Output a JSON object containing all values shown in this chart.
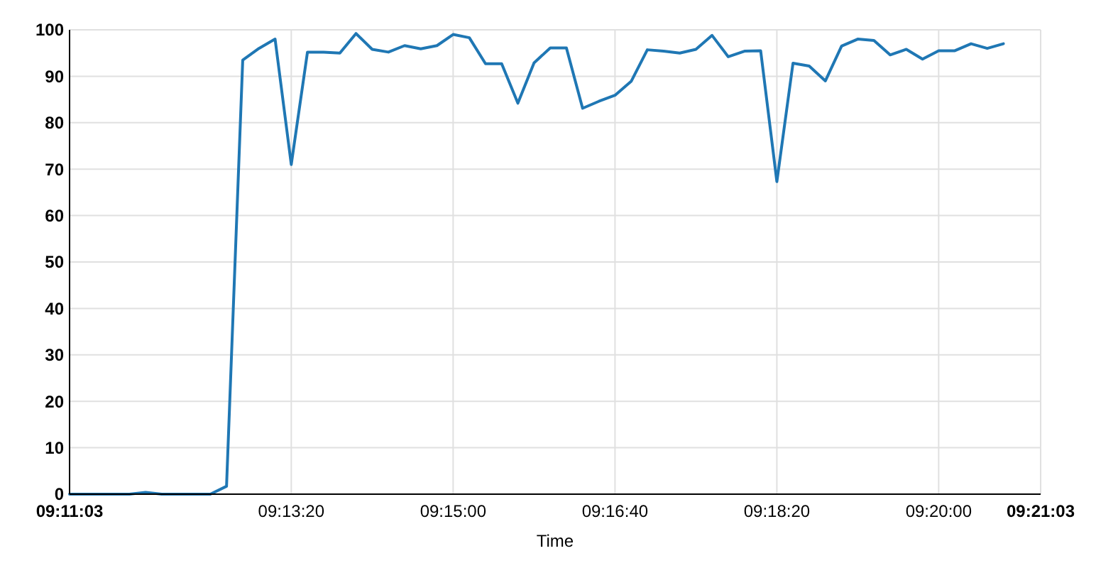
{
  "chart_data": {
    "type": "line",
    "xlabel": "Time",
    "x": [
      9.18417,
      9.18611,
      9.18889,
      9.19167,
      9.19444,
      9.19722,
      9.2,
      9.20278,
      9.20556,
      9.20833,
      9.21111,
      9.21389,
      9.21667,
      9.21944,
      9.22222,
      9.225,
      9.22778,
      9.23056,
      9.23333,
      9.23611,
      9.23889,
      9.24167,
      9.24444,
      9.24722,
      9.25,
      9.25278,
      9.25556,
      9.25833,
      9.26111,
      9.26389,
      9.26667,
      9.26944,
      9.27222,
      9.275,
      9.27778,
      9.28056,
      9.28333,
      9.28611,
      9.28889,
      9.29167,
      9.29444,
      9.29722,
      9.3,
      9.30278,
      9.30556,
      9.30833,
      9.31111,
      9.31389,
      9.31667,
      9.31944,
      9.32222,
      9.325,
      9.32778,
      9.33056,
      9.33333,
      9.33611,
      9.33889,
      9.34167,
      9.34444
    ],
    "series": [
      {
        "color": "#1f77b4",
        "values": [
          0,
          0,
          0,
          0,
          0,
          0.4,
          0,
          0,
          0,
          0,
          1.7,
          93.5,
          96,
          98,
          71,
          95.2,
          95.2,
          95,
          99.2,
          95.8,
          95.2,
          96.6,
          95.9,
          96.6,
          99,
          98.3,
          92.7,
          92.7,
          84.2,
          92.9,
          96.1,
          96.1,
          83.1,
          84.6,
          85.9,
          88.9,
          95.7,
          95.4,
          95,
          95.8,
          98.8,
          94.2,
          95.4,
          95.5,
          67.3,
          92.8,
          92.2,
          89,
          96.5,
          98,
          97.7,
          94.6,
          95.8,
          93.7,
          95.5,
          95.5,
          97,
          96,
          97
        ]
      }
    ],
    "xlim": [
      9.18417,
      9.35083
    ],
    "xticks": [
      {
        "value": 9.18417,
        "label": "09:11:03"
      },
      {
        "value": 9.22222,
        "label": "09:13:20"
      },
      {
        "value": 9.25,
        "label": "09:15:00"
      },
      {
        "value": 9.27778,
        "label": "09:16:40"
      },
      {
        "value": 9.30556,
        "label": "09:18:20"
      },
      {
        "value": 9.33333,
        "label": "09:20:00"
      },
      {
        "value": 9.35083,
        "label": "09:21:03"
      }
    ],
    "ylim": [
      0,
      100
    ],
    "yticks": [
      0,
      10,
      20,
      30,
      40,
      50,
      60,
      70,
      80,
      90,
      100
    ],
    "grid": true,
    "marker": "none",
    "line_style": "solid"
  }
}
